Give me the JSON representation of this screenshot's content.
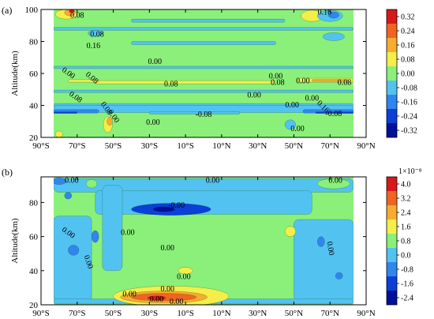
{
  "chart_data": [
    {
      "type": "heatmap",
      "panel_label": "(a)",
      "ylabel": "Altitude(km)",
      "xlim": [
        -90,
        90
      ],
      "ylim": [
        20,
        100
      ],
      "x_ticks": [
        -90,
        -70,
        -50,
        -30,
        -10,
        10,
        30,
        50,
        70,
        90
      ],
      "x_tick_labels": [
        "90°S",
        "70°S",
        "50°S",
        "30°S",
        "10°S",
        "10°N",
        "30°N",
        "50°N",
        "70°N",
        "90°N"
      ],
      "y_ticks": [
        20,
        40,
        60,
        80,
        100
      ],
      "y_tick_labels": [
        "20",
        "40",
        "60",
        "80",
        "100"
      ],
      "data_extent_x": [
        -83,
        83
      ],
      "colorbar": {
        "levels": [
          -0.32,
          -0.24,
          -0.16,
          -0.08,
          0.0,
          0.08,
          0.16,
          0.24,
          0.32
        ],
        "tick_labels": [
          "0.32",
          "0.24",
          "0.16",
          "0.08",
          "0.00",
          "-0.08",
          "-0.16",
          "-0.24",
          "-0.32"
        ],
        "multiplier": "",
        "colors": [
          "#00109a",
          "#0a3fd8",
          "#2f86ee",
          "#52c3f0",
          "#8af07a",
          "#f4ee48",
          "#f8ab2e",
          "#f06422",
          "#d81818"
        ]
      },
      "background_color": "#8af07a",
      "regions": [
        {
          "type": "band",
          "x1": -83,
          "x2": 83,
          "y": 39.0,
          "h": 2.2,
          "color": "#52c3f0"
        },
        {
          "type": "band",
          "x1": -83,
          "x2": 83,
          "y": 35.5,
          "h": 4.5,
          "color": "#52c3f0"
        },
        {
          "type": "band",
          "x1": -83,
          "x2": -58,
          "y": 35.2,
          "h": 2.2,
          "color": "#2f86ee"
        },
        {
          "type": "band",
          "x1": 55,
          "x2": 83,
          "y": 35.2,
          "h": 2.2,
          "color": "#2f86ee"
        },
        {
          "type": "band",
          "x1": -83,
          "x2": -70,
          "y": 35.0,
          "h": 1.0,
          "color": "#0a3fd8"
        },
        {
          "type": "band",
          "x1": 62,
          "x2": 83,
          "y": 35.0,
          "h": 1.0,
          "color": "#0a3fd8"
        },
        {
          "type": "band",
          "x1": -30,
          "x2": 20,
          "y": 34.5,
          "h": 1.5,
          "color": "#52c3f0"
        },
        {
          "type": "band",
          "x1": -83,
          "x2": 83,
          "y": 48.0,
          "h": 1.6,
          "color": "#52c3f0"
        },
        {
          "type": "band",
          "x1": -60,
          "x2": 40,
          "y": 53.5,
          "h": 2.0,
          "color": "#f4ee48"
        },
        {
          "type": "band",
          "x1": 52,
          "x2": 83,
          "y": 54.5,
          "h": 2.5,
          "color": "#f4ee48"
        },
        {
          "type": "band",
          "x1": 60,
          "x2": 80,
          "y": 55.0,
          "h": 1.2,
          "color": "#f8ab2e"
        },
        {
          "type": "band",
          "x1": -75,
          "x2": -58,
          "y": 54.5,
          "h": 1.6,
          "color": "#f4ee48"
        },
        {
          "type": "band",
          "x1": -83,
          "x2": 83,
          "y": 63.0,
          "h": 1.5,
          "color": "#52c3f0"
        },
        {
          "type": "band",
          "x1": -40,
          "x2": 40,
          "y": 78.0,
          "h": 2.0,
          "color": "#52c3f0"
        },
        {
          "type": "band",
          "x1": -83,
          "x2": 83,
          "y": 87.0,
          "h": 1.8,
          "color": "#52c3f0"
        },
        {
          "type": "band",
          "x1": -40,
          "x2": 45,
          "y": 92.0,
          "h": 2.0,
          "color": "#52c3f0"
        },
        {
          "type": "blob",
          "x": -76,
          "y": 97.0,
          "rx": 6,
          "ry": 3.0,
          "color": "#f4ee48"
        },
        {
          "type": "blob",
          "x": -74,
          "y": 98.0,
          "rx": 3,
          "ry": 2.0,
          "color": "#f8ab2e"
        },
        {
          "type": "blob",
          "x": -73,
          "y": 99.0,
          "rx": 1.5,
          "ry": 1.0,
          "color": "#d81818"
        },
        {
          "type": "blob",
          "x": 60,
          "y": 96.0,
          "rx": 6,
          "ry": 3.5,
          "color": "#f4ee48"
        },
        {
          "type": "blob",
          "x": 70,
          "y": 96.0,
          "rx": 7,
          "ry": 3.5,
          "color": "#52c3f0"
        },
        {
          "type": "blob",
          "x": 72,
          "y": 96.5,
          "rx": 3,
          "ry": 2.0,
          "color": "#2f86ee"
        },
        {
          "type": "blob",
          "x": -53,
          "y": 28.0,
          "rx": 2.5,
          "ry": 5.0,
          "color": "#f4ee48"
        },
        {
          "type": "blob",
          "x": -52,
          "y": 30.0,
          "rx": 1.5,
          "ry": 2.5,
          "color": "#f8ab2e"
        },
        {
          "type": "blob",
          "x": 48,
          "y": 28.0,
          "rx": 3,
          "ry": 3.0,
          "color": "#52c3f0"
        },
        {
          "type": "blob",
          "x": -80,
          "y": 22.0,
          "rx": 2,
          "ry": 2.0,
          "color": "#f4ee48"
        },
        {
          "type": "blob",
          "x": -60,
          "y": 85.0,
          "rx": 4,
          "ry": 2.0,
          "color": "#52c3f0"
        },
        {
          "type": "blob",
          "x": 72,
          "y": 83.0,
          "rx": 6,
          "ry": 2.5,
          "color": "#52c3f0"
        }
      ],
      "labels": [
        {
          "text": "0.08",
          "x": -70,
          "y": 96.0,
          "rotate": 0
        },
        {
          "text": "0.16",
          "x": 67,
          "y": 98.0,
          "rotate": 0
        },
        {
          "text": "0.08",
          "x": -59,
          "y": 84.0,
          "rotate": 0
        },
        {
          "text": "0.16",
          "x": -61,
          "y": 77.0,
          "rotate": 0
        },
        {
          "text": "0.00",
          "x": -27,
          "y": 67.0,
          "rotate": 0
        },
        {
          "text": "0.00",
          "x": -75,
          "y": 60.0,
          "rotate": 35
        },
        {
          "text": "0.08",
          "x": -62,
          "y": 57.0,
          "rotate": 40
        },
        {
          "text": "0.08",
          "x": -18,
          "y": 53.0,
          "rotate": 0
        },
        {
          "text": "0.00",
          "x": 40,
          "y": 58.0,
          "rotate": 0
        },
        {
          "text": "0.08",
          "x": 41,
          "y": 54.0,
          "rotate": 0
        },
        {
          "text": "0.00",
          "x": 55,
          "y": 55.0,
          "rotate": 0
        },
        {
          "text": "0.08",
          "x": 78,
          "y": 54.0,
          "rotate": 0
        },
        {
          "text": "0.00",
          "x": 28,
          "y": 46.0,
          "rotate": 0
        },
        {
          "text": "0.08",
          "x": -71,
          "y": 45.0,
          "rotate": 35
        },
        {
          "text": "0.08",
          "x": -54,
          "y": 38.0,
          "rotate": 55
        },
        {
          "text": "0.00",
          "x": -50,
          "y": 33.0,
          "rotate": 55
        },
        {
          "text": "0.00",
          "x": -28,
          "y": 29.0,
          "rotate": 0
        },
        {
          "text": "-0.08",
          "x": 0,
          "y": 34.0,
          "rotate": 0
        },
        {
          "text": "0.00",
          "x": 49,
          "y": 40.0,
          "rotate": 0
        },
        {
          "text": "0.00",
          "x": 60,
          "y": 44.0,
          "rotate": 0
        },
        {
          "text": "0.16",
          "x": 66,
          "y": 39.0,
          "rotate": 45
        },
        {
          "text": "-0.08",
          "x": 72,
          "y": 34.5,
          "rotate": 0
        },
        {
          "text": "0.00",
          "x": 52,
          "y": 25.0,
          "rotate": 0
        }
      ]
    },
    {
      "type": "heatmap",
      "panel_label": "(b)",
      "ylabel": "Altitude(km)",
      "xlim": [
        -90,
        90
      ],
      "ylim": [
        20,
        95
      ],
      "x_ticks": [
        -90,
        -70,
        -50,
        -30,
        -10,
        10,
        30,
        50,
        70,
        90
      ],
      "x_tick_labels": [
        "90°S",
        "70°S",
        "50°S",
        "30°S",
        "10°S",
        "10°N",
        "30°N",
        "50°N",
        "70°N",
        "90°N"
      ],
      "y_ticks": [
        20,
        40,
        60,
        80
      ],
      "y_tick_labels": [
        "20",
        "40",
        "60",
        "80"
      ],
      "data_extent_x": [
        -83,
        83
      ],
      "colorbar": {
        "levels": [
          -2.4,
          -1.6,
          -0.8,
          0.0,
          0.8,
          1.6,
          2.4,
          3.2,
          4.0
        ],
        "tick_labels": [
          "4.0",
          "3.2",
          "2.4",
          "1.6",
          "0.8",
          "0.0",
          "-0.8",
          "-1.6",
          "-2.4"
        ],
        "multiplier": "1×10⁻⁸",
        "colors": [
          "#00109a",
          "#0a3fd8",
          "#2f86ee",
          "#52c3f0",
          "#8af07a",
          "#f4ee48",
          "#f8ab2e",
          "#f06422",
          "#d81818"
        ]
      },
      "background_color": "#8af07a",
      "regions": [
        {
          "type": "band",
          "x1": -83,
          "x2": 83,
          "y": 86.0,
          "h": 8.0,
          "color": "#52c3f0"
        },
        {
          "type": "band",
          "x1": -60,
          "x2": 60,
          "y": 73.0,
          "h": 14.0,
          "color": "#52c3f0"
        },
        {
          "type": "band",
          "x1": -56,
          "x2": -45,
          "y": 40.0,
          "h": 50.0,
          "color": "#52c3f0"
        },
        {
          "type": "band",
          "x1": -83,
          "x2": -62,
          "y": 22.0,
          "h": 50.0,
          "color": "#52c3f0"
        },
        {
          "type": "band",
          "x1": 50,
          "x2": 83,
          "y": 22.0,
          "h": 48.0,
          "color": "#52c3f0"
        },
        {
          "type": "band",
          "x1": -83,
          "x2": 83,
          "y": 20.5,
          "h": 3.0,
          "color": "#52c3f0"
        },
        {
          "type": "blob",
          "x": -18,
          "y": 76.0,
          "rx": 22,
          "ry": 3.5,
          "color": "#0a3fd8"
        },
        {
          "type": "blob",
          "x": -22,
          "y": 76.0,
          "rx": 6,
          "ry": 1.5,
          "color": "#00109a"
        },
        {
          "type": "blob",
          "x": -72,
          "y": 52.0,
          "rx": 3,
          "ry": 3.0,
          "color": "#2f86ee"
        },
        {
          "type": "blob",
          "x": -60,
          "y": 60.0,
          "rx": 2,
          "ry": 3.5,
          "color": "#2f86ee"
        },
        {
          "type": "blob",
          "x": 65,
          "y": 57.0,
          "rx": 2,
          "ry": 3.0,
          "color": "#2f86ee"
        },
        {
          "type": "blob",
          "x": 75,
          "y": 37.0,
          "rx": 2,
          "ry": 2.0,
          "color": "#2f86ee"
        },
        {
          "type": "blob",
          "x": -75,
          "y": 84.0,
          "rx": 2,
          "ry": 2.0,
          "color": "#2f86ee"
        },
        {
          "type": "blob",
          "x": -80,
          "y": 92.5,
          "rx": 4,
          "ry": 2.0,
          "color": "#2f86ee"
        },
        {
          "type": "blob",
          "x": 72,
          "y": 91.0,
          "rx": 9,
          "ry": 3.0,
          "color": "#8af07a"
        },
        {
          "type": "blob",
          "x": -62,
          "y": 91.0,
          "rx": 3,
          "ry": 2.5,
          "color": "#8af07a"
        },
        {
          "type": "blob",
          "x": -18,
          "y": 25.0,
          "rx": 32,
          "ry": 6.0,
          "color": "#f4ee48"
        },
        {
          "type": "blob",
          "x": -22,
          "y": 24.5,
          "rx": 24,
          "ry": 3.5,
          "color": "#f8ab2e"
        },
        {
          "type": "blob",
          "x": -22,
          "y": 24.5,
          "rx": 18,
          "ry": 2.2,
          "color": "#f06422"
        },
        {
          "type": "blob",
          "x": -26,
          "y": 24.0,
          "rx": 5,
          "ry": 1.2,
          "color": "#d81818"
        },
        {
          "type": "blob",
          "x": 48,
          "y": 63.0,
          "rx": 3,
          "ry": 3.0,
          "color": "#f4ee48"
        },
        {
          "type": "blob",
          "x": -10,
          "y": 40.0,
          "rx": 4,
          "ry": 2.0,
          "color": "#f4ee48"
        }
      ],
      "labels": [
        {
          "text": "0.00",
          "x": -73,
          "y": 92.5,
          "rotate": 0
        },
        {
          "text": "0.00",
          "x": 5,
          "y": 92.5,
          "rotate": 0
        },
        {
          "text": "0.00",
          "x": 73,
          "y": 92.5,
          "rotate": 0
        },
        {
          "text": "-0.00",
          "x": -15,
          "y": 78.0,
          "rotate": 0
        },
        {
          "text": "0.00",
          "x": -75,
          "y": 62.0,
          "rotate": 35
        },
        {
          "text": "0.00",
          "x": -42,
          "y": 62.0,
          "rotate": 0
        },
        {
          "text": "0.00",
          "x": -20,
          "y": 53.0,
          "rotate": 0
        },
        {
          "text": "0.00",
          "x": 70,
          "y": 53.0,
          "rotate": 80
        },
        {
          "text": "0.00",
          "x": -64,
          "y": 45.0,
          "rotate": 70
        },
        {
          "text": "0.00",
          "x": -11,
          "y": 36.0,
          "rotate": 0
        },
        {
          "text": "0.00",
          "x": -20,
          "y": 29.0,
          "rotate": 0
        },
        {
          "text": "0.00",
          "x": -41,
          "y": 26.0,
          "rotate": 0
        },
        {
          "text": "0.00",
          "x": -26,
          "y": 23.0,
          "rotate": 0
        },
        {
          "text": "0.00",
          "x": -15,
          "y": 21.5,
          "rotate": 0
        }
      ]
    }
  ]
}
